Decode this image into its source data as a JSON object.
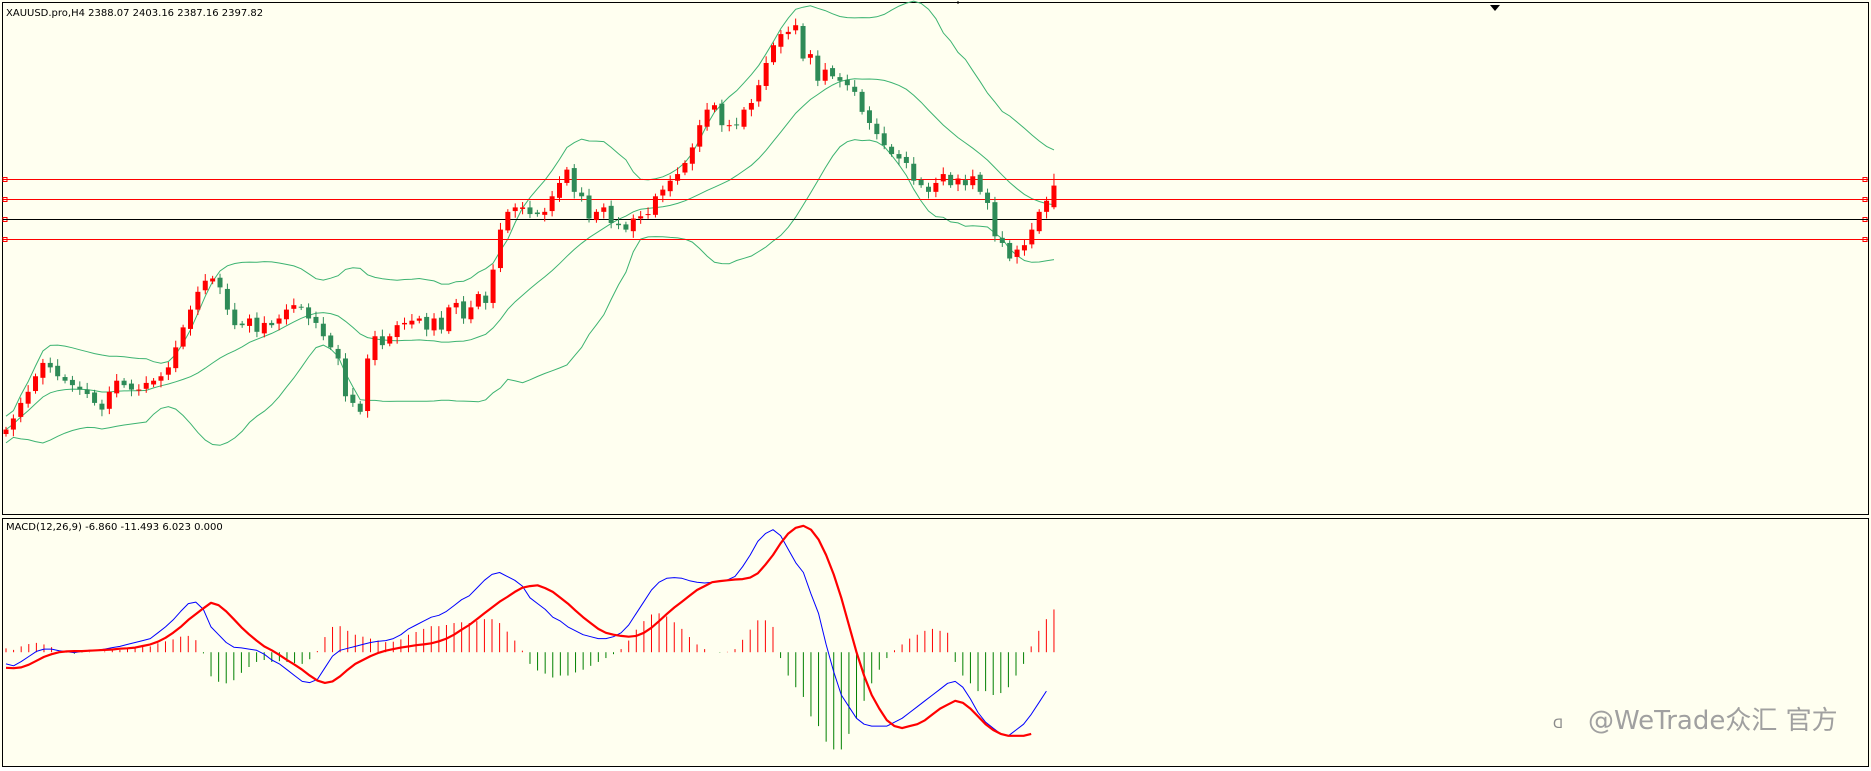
{
  "price_panel": {
    "label": "XAUUSD.pro,H4  2388.07 2403.16 2387.16 2397.82"
  },
  "macd_panel": {
    "label": "MACD(12,26,9) -6.860 -11.493 6.023 0.000"
  },
  "watermark": {
    "text": "@WeTrade众汇 官方"
  },
  "colors": {
    "background": "#fffff0",
    "bull_candle": "#ff0000",
    "bear_candle": "#2e8b57",
    "bollinger": "#3cb371",
    "macd_line": "#0000ff",
    "signal_line": "#ff0000",
    "hist_positive": "#ff0000",
    "hist_negative": "#008000",
    "level_line": "#ff0000",
    "price_line": "#000000"
  },
  "chart_data": [
    {
      "type": "candlestick",
      "symbol": "XAUUSD.pro",
      "timeframe": "H4",
      "ohlc": [
        2388.07,
        2403.16,
        2387.16,
        2397.82
      ],
      "ylim": [
        2250,
        2480
      ],
      "horizontal_levels": [
        2401,
        2392,
        2383,
        2374
      ],
      "current_price_line": 2383,
      "bollinger_bands": true,
      "closes": [
        2288,
        2293,
        2300,
        2305,
        2312,
        2318,
        2316,
        2312,
        2310,
        2308,
        2306,
        2304,
        2300,
        2297,
        2305,
        2310,
        2308,
        2306,
        2306,
        2309,
        2310,
        2312,
        2316,
        2325,
        2334,
        2342,
        2350,
        2355,
        2356,
        2352,
        2342,
        2335,
        2335,
        2338,
        2332,
        2336,
        2335,
        2338,
        2342,
        2344,
        2343,
        2338,
        2336,
        2330,
        2325,
        2320,
        2303,
        2300,
        2296,
        2320,
        2330,
        2326,
        2330,
        2335,
        2336,
        2337,
        2338,
        2333,
        2338,
        2333,
        2343,
        2345,
        2338,
        2343,
        2349,
        2345,
        2360,
        2378,
        2386,
        2388,
        2388,
        2385,
        2385,
        2386,
        2393,
        2399,
        2405,
        2395,
        2393,
        2383,
        2386,
        2388,
        2381,
        2380,
        2378,
        2383,
        2384,
        2385,
        2393,
        2396,
        2400,
        2403,
        2408,
        2415,
        2425,
        2432,
        2434,
        2425,
        2425,
        2425,
        2432,
        2435,
        2443,
        2453,
        2461,
        2466,
        2467,
        2470,
        2455,
        2457,
        2445,
        2450,
        2447,
        2445,
        2443,
        2440,
        2431,
        2426,
        2421,
        2416,
        2412,
        2410,
        2408,
        2400,
        2398,
        2395,
        2399,
        2403,
        2398,
        2401,
        2398,
        2402,
        2395,
        2390,
        2375,
        2372,
        2365,
        2369,
        2371,
        2378,
        2386,
        2391,
        2398
      ]
    },
    {
      "type": "line",
      "indicator": "MACD",
      "params": [
        12,
        26,
        9
      ],
      "values": [
        -6.86,
        -11.493,
        6.023,
        0.0
      ],
      "series": [
        {
          "values": [
            -3,
            -3.5,
            -2.4,
            -1.1,
            0.2,
            0.8,
            0.8,
            0.4,
            0.1,
            -0.1,
            0.2,
            0.5,
            0.5,
            0.8,
            1.2,
            1.5,
            2,
            2.5,
            3,
            3.5,
            5,
            6.5,
            8.3,
            10.5,
            12.5,
            12.9,
            11,
            6.5,
            4.5,
            2.5,
            1.3,
            1.1,
            0.8,
            0.5,
            -0.5,
            -2,
            -3,
            -4.5,
            -6,
            -7.5,
            -7.8,
            -7,
            -4,
            -1,
            0.5,
            1,
            1.5,
            2,
            2.5,
            2.8,
            3,
            3.5,
            4.5,
            6,
            7,
            8,
            9,
            9.5,
            10.5,
            12,
            13.5,
            14.5,
            16.5,
            18.5,
            20,
            20.5,
            19.5,
            18.5,
            17,
            14,
            12.5,
            11,
            9,
            8,
            6.5,
            5.5,
            4.5,
            4,
            3.5,
            3.5,
            4,
            5,
            7,
            10,
            13,
            16,
            18,
            19,
            19.2,
            19,
            18.4,
            18,
            17.8,
            18,
            18.2,
            18.6,
            19.5,
            22,
            25,
            28.5,
            30.5,
            31.5,
            30,
            26.5,
            23,
            20.5,
            15,
            10,
            2,
            -5,
            -11,
            -14,
            -17,
            -18.5,
            -19,
            -19,
            -19,
            -18,
            -17,
            -15.5,
            -14,
            -12.5,
            -11,
            -9.5,
            -8,
            -7.5,
            -9,
            -12,
            -15.5,
            -18,
            -19.5,
            -21,
            -21.5,
            -20,
            -18.5,
            -16,
            -13,
            -10
          ]
        },
        {
          "values": [
            -4,
            -4.1,
            -3.9,
            -3.2,
            -2.2,
            -1.2,
            -0.5,
            0,
            0.2,
            0.3,
            0.3,
            0.4,
            0.5,
            0.6,
            0.7,
            0.9,
            1,
            1.2,
            1.6,
            2,
            2.7,
            3.7,
            5,
            6.5,
            8.3,
            9.8,
            11.3,
            12.7,
            12.1,
            10.5,
            8.5,
            6.4,
            4.6,
            3,
            1.5,
            0.5,
            -0.7,
            -2,
            -3.2,
            -4.5,
            -6,
            -7.3,
            -7.9,
            -7.5,
            -6.2,
            -4.5,
            -3,
            -2,
            -1,
            -0.2,
            0.4,
            0.8,
            1.2,
            1.5,
            1.8,
            2,
            2.3,
            2.8,
            3.5,
            4.5,
            5.8,
            7,
            8.5,
            10,
            11.5,
            13,
            14.2,
            15.5,
            16.6,
            17,
            17.2,
            16.5,
            15.5,
            14,
            12.5,
            10.7,
            9,
            7.5,
            6,
            5,
            4.5,
            4.2,
            4,
            4.2,
            5,
            6.3,
            8,
            9.8,
            11.5,
            13,
            14.5,
            16,
            17,
            18,
            18.3,
            18.5,
            18.7,
            18.8,
            19.2,
            20.3,
            22.5,
            25,
            28,
            30.5,
            32,
            32.5,
            31.5,
            29,
            25,
            20,
            14,
            7,
            0,
            -6,
            -11,
            -14.5,
            -17.5,
            -19,
            -19.5,
            -19,
            -18.5,
            -17.5,
            -16,
            -14.5,
            -13.5,
            -12.5,
            -13,
            -14.5,
            -16.5,
            -18.5,
            -20,
            -21,
            -21.5,
            -21.5,
            -21.5,
            -21
          ]
        }
      ],
      "histogram": [
        1,
        0.6,
        1.5,
        2.1,
        2.4,
        2,
        1.3,
        0.4,
        -0.1,
        -0.4,
        -0.1,
        0.1,
        0,
        0.2,
        0.5,
        0.6,
        1,
        1.3,
        1.4,
        1.5,
        2.3,
        2.8,
        3.3,
        4,
        4.2,
        3.1,
        -0.3,
        -6.2,
        -7.6,
        -8,
        -7.2,
        -5.3,
        -3.8,
        -2.5,
        -2,
        -2.5,
        -2.3,
        -2.5,
        -2.8,
        -3,
        -1.8,
        0.3,
        3.9,
        6.5,
        6.7,
        5.5,
        4.5,
        4,
        3.5,
        3,
        2.6,
        2.7,
        3.3,
        4.5,
        5.2,
        6,
        6.7,
        6.7,
        7,
        7.5,
        7.7,
        7.5,
        8,
        8.5,
        8.5,
        7.5,
        5.3,
        3,
        0.4,
        -3,
        -4.7,
        -5.5,
        -6.5,
        -6,
        -6,
        -5.2,
        -4.5,
        -3.5,
        -2.5,
        -1.5,
        -0.5,
        0.8,
        3,
        5.8,
        8,
        9.7,
        10,
        9.2,
        7.7,
        6,
        3.9,
        2,
        0.8,
        0,
        -0.1,
        0.1,
        0.8,
        3.2,
        5.8,
        8.2,
        8.2,
        6.5,
        -1.5,
        -6,
        -9,
        -11.5,
        -16.5,
        -19,
        -23,
        -25,
        -25,
        -21,
        -17,
        -12.5,
        -8,
        -4.5,
        -1.5,
        0.5,
        2,
        3.5,
        4.5,
        5.5,
        6,
        5.5,
        5,
        -2.5,
        -6,
        -8,
        -10,
        -10,
        -11,
        -10.5,
        -9,
        -6,
        -3,
        1.5,
        5.5,
        8.5,
        11
      ]
    }
  ]
}
